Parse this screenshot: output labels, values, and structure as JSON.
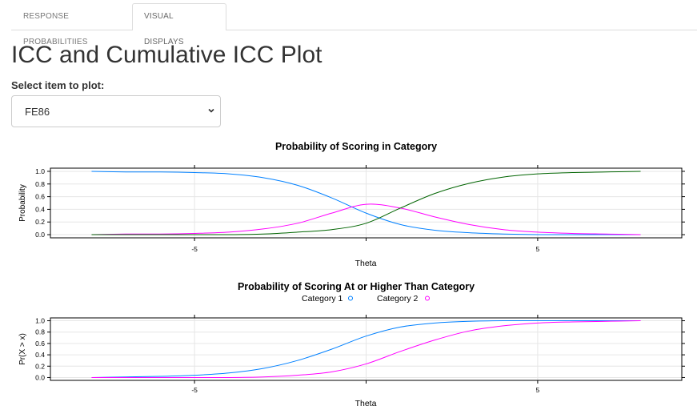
{
  "tabs": [
    {
      "label": "RESPONSE PROBABILITIIES",
      "active": false
    },
    {
      "label": "VISUAL DISPLAYS",
      "active": true
    }
  ],
  "page_title": "ICC and Cumulative ICC Plot",
  "select": {
    "label": "Select item to plot:",
    "value": "FE86",
    "icon": "chevron-down-icon"
  },
  "colors": {
    "category_0": "#000000",
    "category_1": "#0080ff",
    "category_2": "#ff00ff",
    "category_3": "#006400"
  },
  "chart_data": [
    {
      "type": "line",
      "title": "Probability of Scoring in Category",
      "xlabel": "Theta",
      "ylabel": "Probability",
      "xlim": [
        -9.2,
        9.2
      ],
      "ylim": [
        -0.05,
        1.05
      ],
      "xticks": [
        -5,
        0,
        5
      ],
      "xtick_labels": [
        "-5",
        "",
        "5"
      ],
      "yticks": [
        0.0,
        0.2,
        0.4,
        0.6,
        0.8,
        1.0
      ],
      "ytick_labels": [
        "0.0",
        "0.2",
        "0.4",
        "0.6",
        "0.8",
        "1.0"
      ],
      "grid": true,
      "legend": "none",
      "x": [
        -8,
        -7,
        -6,
        -5,
        -4,
        -3,
        -2,
        -1,
        0,
        1,
        2,
        3,
        4,
        5,
        6,
        7,
        8
      ],
      "series": [
        {
          "color": "#0080ff",
          "values": [
            1.0,
            0.99,
            0.99,
            0.98,
            0.96,
            0.9,
            0.78,
            0.58,
            0.34,
            0.16,
            0.07,
            0.03,
            0.01,
            0.0,
            0.0,
            0.0,
            0.0
          ]
        },
        {
          "color": "#ff00ff",
          "values": [
            0.0,
            0.01,
            0.01,
            0.02,
            0.04,
            0.09,
            0.18,
            0.34,
            0.48,
            0.42,
            0.28,
            0.16,
            0.08,
            0.04,
            0.02,
            0.01,
            0.0
          ]
        },
        {
          "color": "#006400",
          "values": [
            0.0,
            0.0,
            0.0,
            0.0,
            0.0,
            0.01,
            0.04,
            0.08,
            0.18,
            0.42,
            0.65,
            0.81,
            0.91,
            0.96,
            0.98,
            0.99,
            1.0
          ]
        }
      ]
    },
    {
      "type": "line",
      "title": "Probability of Scoring At or Higher Than Category",
      "xlabel": "Theta",
      "ylabel": "Pr(X > x)",
      "xlim": [
        -9.2,
        9.2
      ],
      "ylim": [
        -0.05,
        1.05
      ],
      "xticks": [
        -5,
        0,
        5
      ],
      "xtick_labels": [
        "-5",
        "",
        "5"
      ],
      "yticks": [
        0.0,
        0.2,
        0.4,
        0.6,
        0.8,
        1.0
      ],
      "ytick_labels": [
        "0.0",
        "0.2",
        "0.4",
        "0.6",
        "0.8",
        "1.0"
      ],
      "grid": true,
      "legend": "top",
      "x": [
        -8,
        -7,
        -6,
        -5,
        -4,
        -3,
        -2,
        -1,
        0,
        1,
        2,
        3,
        4,
        5,
        6,
        7,
        8
      ],
      "series": [
        {
          "name": "Category 1",
          "color": "#0080ff",
          "values": [
            0.0,
            0.01,
            0.02,
            0.04,
            0.08,
            0.16,
            0.3,
            0.5,
            0.73,
            0.89,
            0.96,
            0.99,
            1.0,
            1.0,
            1.0,
            1.0,
            1.0
          ]
        },
        {
          "name": "Category 2",
          "color": "#ff00ff",
          "values": [
            0.0,
            0.0,
            0.0,
            0.0,
            0.0,
            0.01,
            0.04,
            0.1,
            0.24,
            0.46,
            0.66,
            0.82,
            0.91,
            0.96,
            0.98,
            0.99,
            1.0
          ]
        }
      ]
    }
  ]
}
